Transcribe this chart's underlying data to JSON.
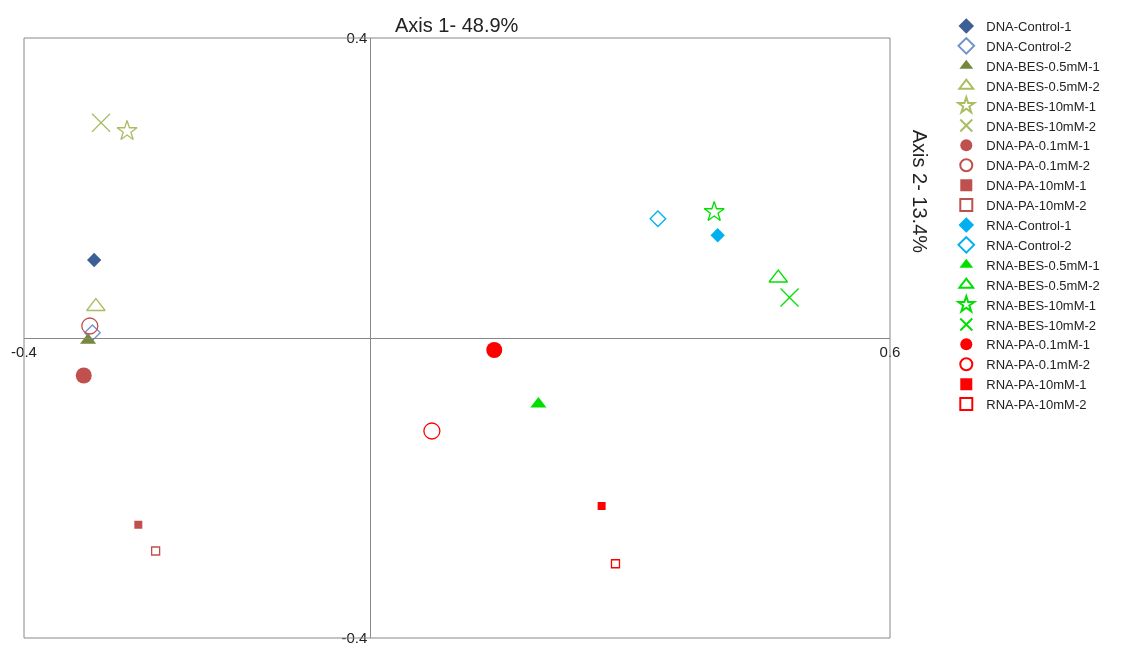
{
  "chart_data": {
    "type": "scatter",
    "xlabel": "Axis 1- 48.9%",
    "ylabel": "Axis 2- 13.4%",
    "xlim": [
      -0.4,
      0.6
    ],
    "ylim": [
      -0.4,
      0.4
    ],
    "xticks": [
      -0.4,
      0.6
    ],
    "yticks": [
      0.4,
      -0.4
    ],
    "legend": "right",
    "series": [
      {
        "name": "DNA-Control-1",
        "color": "#3c5f95",
        "marker": "diamond",
        "x": [
          -0.319
        ],
        "values": [
          0.104
        ]
      },
      {
        "name": "DNA-Control-2",
        "color": "#6f93cc",
        "marker": "diamond-open",
        "x": [
          -0.321
        ],
        "values": [
          0.007
        ]
      },
      {
        "name": "DNA-BES-0.5mM-1",
        "color": "#76893a",
        "marker": "triangle",
        "x": [
          -0.326
        ],
        "values": [
          -0.003
        ]
      },
      {
        "name": "DNA-BES-0.5mM-2",
        "color": "#a9bd62",
        "marker": "triangle-open",
        "x": [
          -0.317
        ],
        "values": [
          0.042
        ]
      },
      {
        "name": "DNA-BES-10mM-1",
        "color": "#a9bd62",
        "marker": "star-open",
        "x": [
          -0.281
        ],
        "values": [
          0.276
        ]
      },
      {
        "name": "DNA-BES-10mM-2",
        "color": "#a9bd62",
        "marker": "cross",
        "x": [
          -0.311
        ],
        "values": [
          0.287
        ]
      },
      {
        "name": "DNA-PA-0.1mM-1",
        "color": "#c0504d",
        "marker": "circle",
        "x": [
          -0.331
        ],
        "values": [
          -0.05
        ]
      },
      {
        "name": "DNA-PA-0.1mM-2",
        "color": "#c0504d",
        "marker": "circle-open",
        "x": [
          -0.324
        ],
        "values": [
          0.016
        ]
      },
      {
        "name": "DNA-PA-10mM-1",
        "color": "#c0504d",
        "marker": "square",
        "x": [
          -0.268
        ],
        "values": [
          -0.249
        ]
      },
      {
        "name": "DNA-PA-10mM-2",
        "color": "#c0504d",
        "marker": "square-open",
        "x": [
          -0.248
        ],
        "values": [
          -0.284
        ]
      },
      {
        "name": "RNA-Control-1",
        "color": "#00b0f0",
        "marker": "diamond",
        "x": [
          0.401
        ],
        "values": [
          0.137
        ]
      },
      {
        "name": "RNA-Control-2",
        "color": "#00b0f0",
        "marker": "diamond-open",
        "x": [
          0.332
        ],
        "values": [
          0.159
        ]
      },
      {
        "name": "RNA-BES-0.5mM-1",
        "color": "#00e000",
        "marker": "triangle",
        "x": [
          0.194
        ],
        "values": [
          -0.088
        ]
      },
      {
        "name": "RNA-BES-0.5mM-2",
        "color": "#00e000",
        "marker": "triangle-open",
        "x": [
          0.471
        ],
        "values": [
          0.08
        ]
      },
      {
        "name": "RNA-BES-10mM-1",
        "color": "#00e000",
        "marker": "star-open",
        "x": [
          0.397
        ],
        "values": [
          0.168
        ]
      },
      {
        "name": "RNA-BES-10mM-2",
        "color": "#00e000",
        "marker": "cross",
        "x": [
          0.484
        ],
        "values": [
          0.054
        ]
      },
      {
        "name": "RNA-PA-0.1mM-1",
        "color": "#ff0000",
        "marker": "circle",
        "x": [
          0.143
        ],
        "values": [
          -0.016
        ]
      },
      {
        "name": "RNA-PA-0.1mM-2",
        "color": "#ff0000",
        "marker": "circle-open",
        "x": [
          0.071
        ],
        "values": [
          -0.124
        ]
      },
      {
        "name": "RNA-PA-10mM-1",
        "color": "#ff0000",
        "marker": "square",
        "x": [
          0.267
        ],
        "values": [
          -0.224
        ]
      },
      {
        "name": "RNA-PA-10mM-2",
        "color": "#ff0000",
        "marker": "square-open",
        "x": [
          0.283
        ],
        "values": [
          -0.301
        ]
      }
    ]
  }
}
